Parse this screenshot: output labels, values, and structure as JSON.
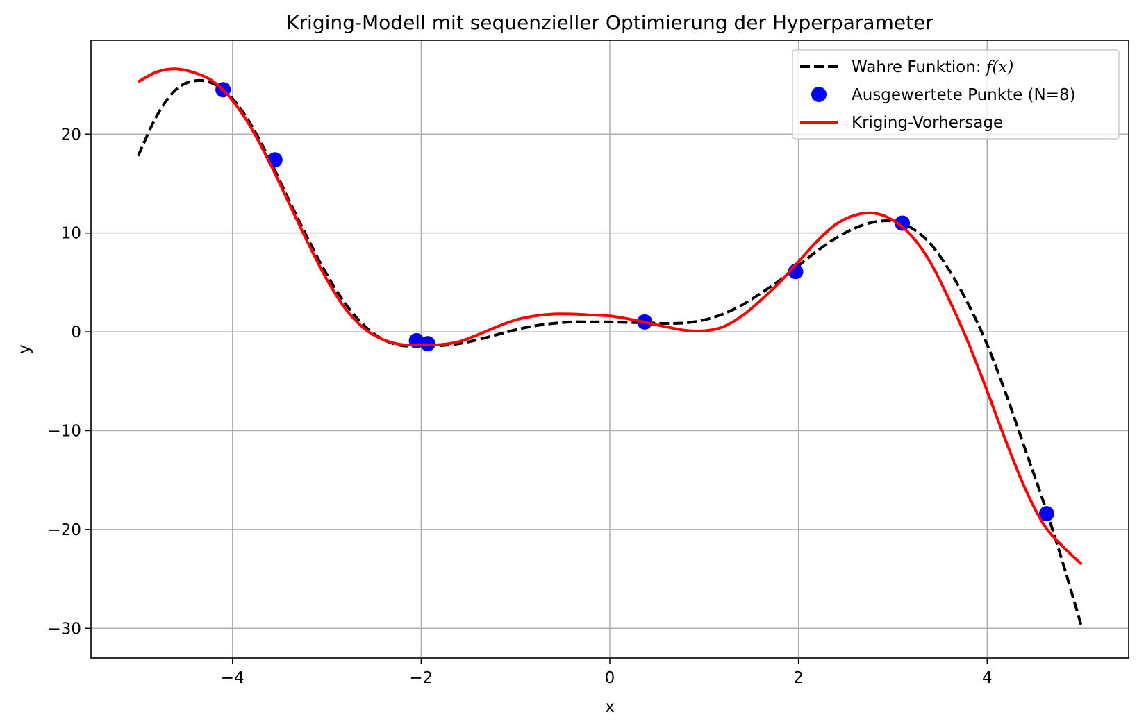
{
  "chart_data": {
    "type": "line",
    "title": "Kriging-Modell mit sequenzieller Optimierung der Hyperparameter",
    "xlabel": "x",
    "ylabel": "y",
    "xlim": [
      -5.5,
      5.5
    ],
    "ylim": [
      -33,
      29.5
    ],
    "xticks": [
      -4,
      -2,
      0,
      2,
      4
    ],
    "yticks": [
      -30,
      -20,
      -10,
      0,
      10,
      20
    ],
    "grid": true,
    "legend_position": "top-right",
    "legend": {
      "true_label": "Wahre Funktion: ",
      "true_label_math": "f(x)",
      "points_label": "Ausgewertete Punkte (N=8)",
      "kriging_label": "Kriging-Vorhersage"
    },
    "colors": {
      "true_function": "#000000",
      "points": "#0000ff",
      "kriging": "#ff0000",
      "grid": "#b0b0b0"
    },
    "series": [
      {
        "name": "Wahre Funktion: f(x)",
        "style": "dashed",
        "x": [
          -5.0,
          -4.8,
          -4.6,
          -4.4,
          -4.2,
          -4.0,
          -3.8,
          -3.6,
          -3.4,
          -3.2,
          -3.0,
          -2.8,
          -2.6,
          -2.4,
          -2.2,
          -2.0,
          -1.8,
          -1.6,
          -1.4,
          -1.2,
          -1.0,
          -0.8,
          -0.6,
          -0.4,
          -0.2,
          0.0,
          0.2,
          0.4,
          0.6,
          0.8,
          1.0,
          1.2,
          1.4,
          1.6,
          1.8,
          2.0,
          2.2,
          2.4,
          2.6,
          2.8,
          3.0,
          3.2,
          3.4,
          3.6,
          3.8,
          4.0,
          4.2,
          4.4,
          4.6,
          4.8,
          5.0
        ],
        "y": [
          17.8,
          21.9,
          24.5,
          25.4,
          25.1,
          23.6,
          20.9,
          17.3,
          13.3,
          9.4,
          5.8,
          2.8,
          0.6,
          -0.8,
          -1.4,
          -1.4,
          -1.4,
          -1.2,
          -0.8,
          -0.3,
          0.2,
          0.6,
          0.85,
          1.0,
          1.0,
          1.0,
          0.95,
          0.9,
          0.85,
          0.9,
          1.2,
          1.8,
          2.7,
          3.9,
          5.2,
          6.7,
          8.2,
          9.5,
          10.5,
          11.1,
          11.2,
          10.5,
          8.9,
          6.2,
          2.8,
          -1.3,
          -6.3,
          -11.8,
          -17.3,
          -23.3,
          -29.8
        ]
      },
      {
        "name": "Ausgewertete Punkte (N=8)",
        "style": "markers",
        "x": [
          -4.1,
          -3.55,
          -2.05,
          -1.93,
          0.37,
          1.97,
          3.1,
          4.63
        ],
        "y": [
          24.5,
          17.4,
          -0.9,
          -1.2,
          1.0,
          6.1,
          11.0,
          -18.4
        ]
      },
      {
        "name": "Kriging-Vorhersage",
        "style": "solid",
        "x": [
          -5.0,
          -4.8,
          -4.6,
          -4.4,
          -4.2,
          -4.0,
          -3.8,
          -3.6,
          -3.4,
          -3.2,
          -3.0,
          -2.8,
          -2.6,
          -2.4,
          -2.2,
          -2.0,
          -1.8,
          -1.6,
          -1.4,
          -1.2,
          -1.0,
          -0.8,
          -0.6,
          -0.4,
          -0.2,
          0.0,
          0.2,
          0.4,
          0.6,
          0.8,
          1.0,
          1.2,
          1.4,
          1.6,
          1.8,
          2.0,
          2.2,
          2.4,
          2.6,
          2.8,
          3.0,
          3.2,
          3.4,
          3.6,
          3.8,
          4.0,
          4.2,
          4.4,
          4.6,
          4.8,
          5.0
        ],
        "y": [
          25.3,
          26.3,
          26.6,
          26.2,
          25.3,
          23.4,
          20.6,
          17.0,
          13.0,
          9.0,
          5.3,
          2.3,
          0.3,
          -0.8,
          -1.3,
          -1.3,
          -1.3,
          -1.0,
          -0.3,
          0.5,
          1.2,
          1.6,
          1.8,
          1.8,
          1.7,
          1.6,
          1.3,
          0.9,
          0.5,
          0.15,
          0.1,
          0.5,
          1.6,
          3.2,
          5.0,
          7.1,
          9.2,
          10.9,
          11.8,
          12.0,
          11.3,
          9.7,
          7.0,
          3.2,
          -1.1,
          -6.0,
          -11.1,
          -15.8,
          -19.5,
          -21.7,
          -23.5
        ]
      }
    ]
  }
}
